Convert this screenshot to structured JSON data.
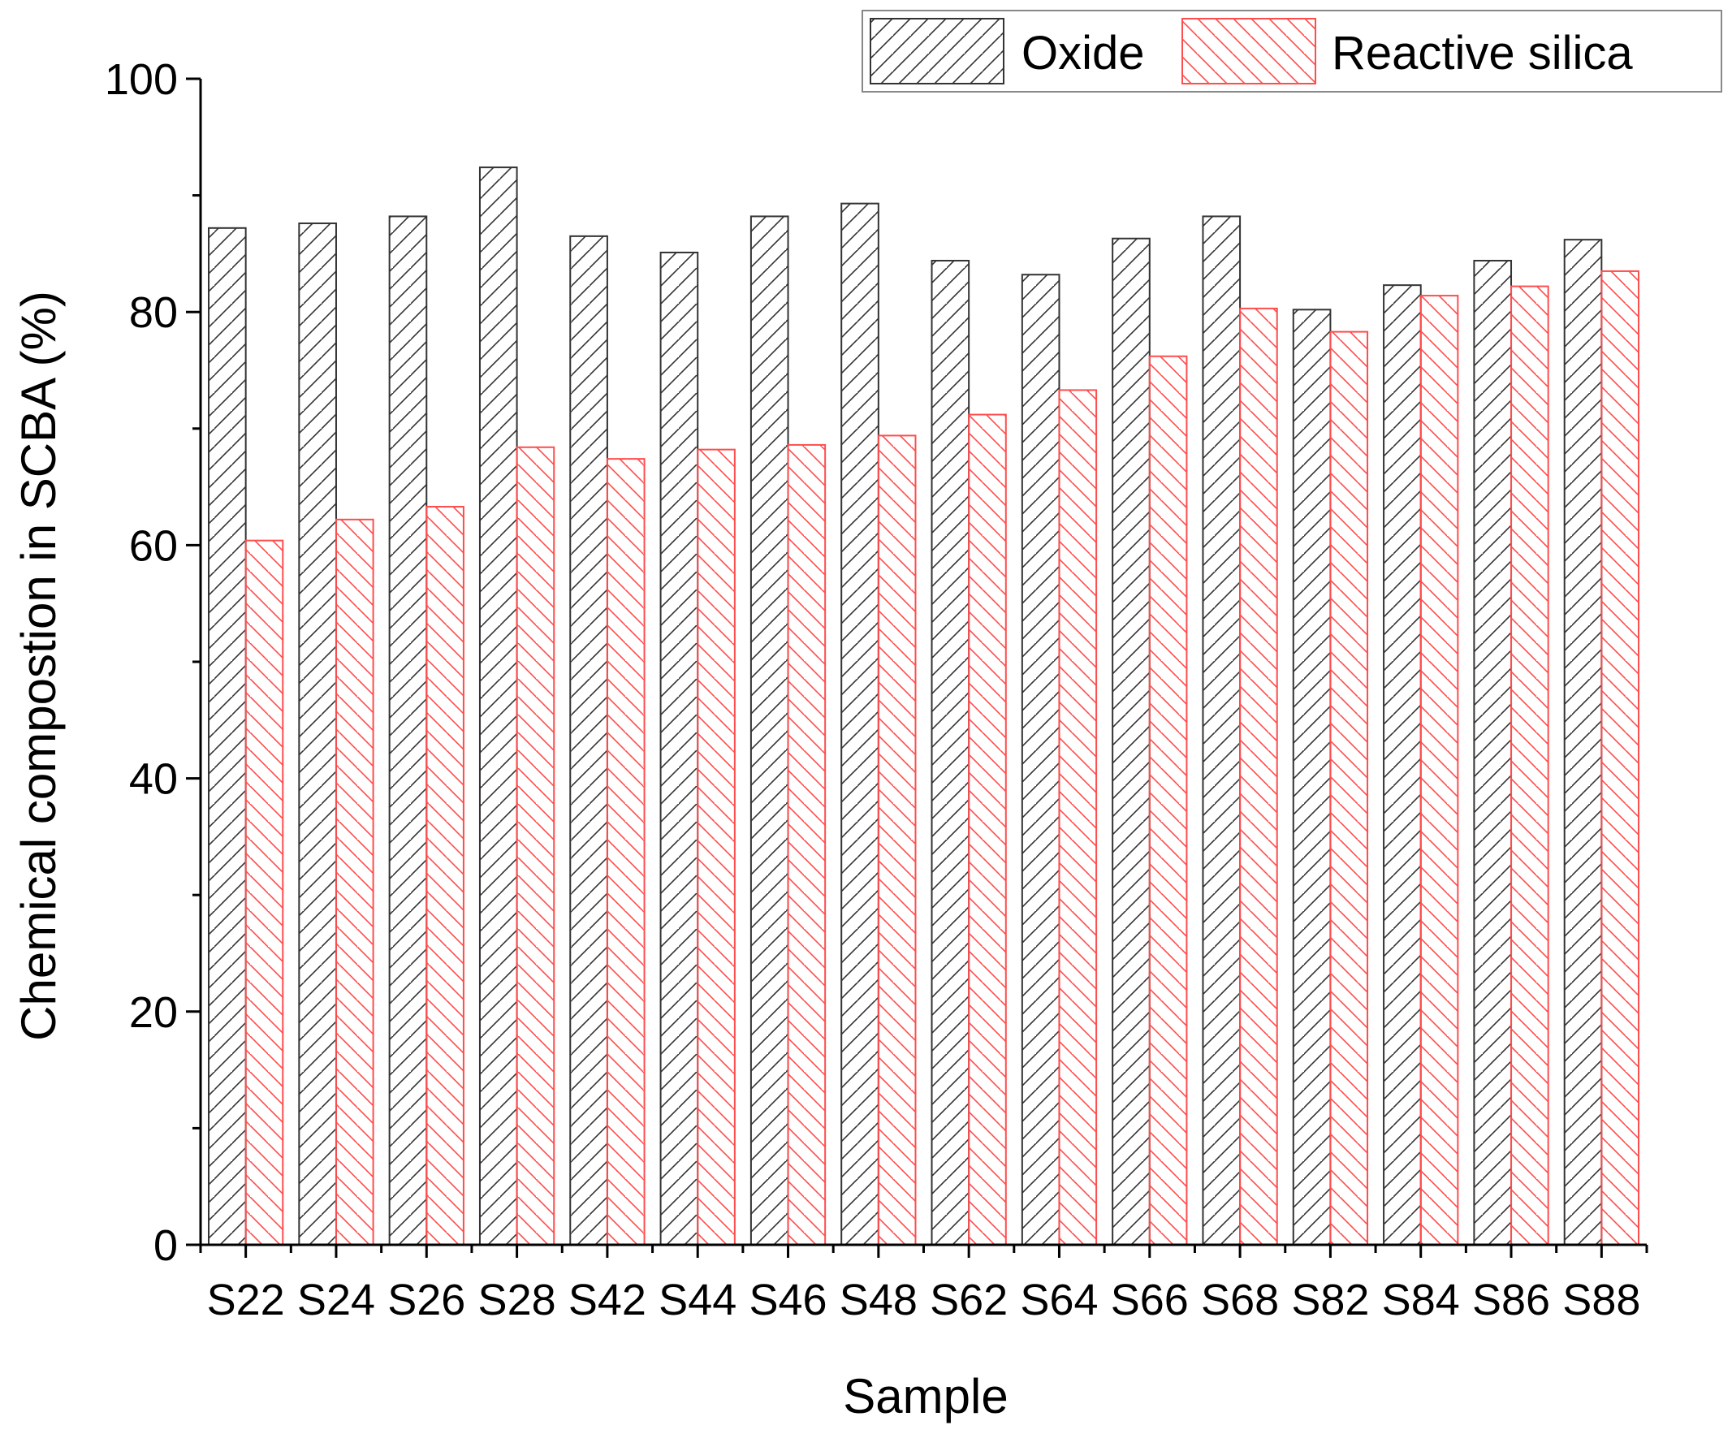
{
  "chart_data": {
    "type": "bar",
    "title": "",
    "xlabel": "Sample",
    "ylabel": "Chemical compostion in SCBA (%)",
    "ylim": [
      0,
      100
    ],
    "yticks": [
      0,
      20,
      40,
      60,
      80,
      100
    ],
    "grid": false,
    "legend_position": "top-right",
    "categories": [
      "S22",
      "S24",
      "S26",
      "S28",
      "S42",
      "S44",
      "S46",
      "S48",
      "S62",
      "S64",
      "S66",
      "S68",
      "S82",
      "S84",
      "S86",
      "S88"
    ],
    "series": [
      {
        "name": "Oxide",
        "color": "#333333",
        "pattern": "forward-hatch",
        "values": [
          87.2,
          87.6,
          88.2,
          92.4,
          86.5,
          85.1,
          88.2,
          89.3,
          84.4,
          83.2,
          86.3,
          88.2,
          80.2,
          82.3,
          84.4,
          86.2
        ]
      },
      {
        "name": "Reactive silica",
        "color": "#ff4d4d",
        "pattern": "back-hatch",
        "values": [
          60.4,
          62.2,
          63.3,
          68.4,
          67.4,
          68.2,
          68.6,
          69.4,
          71.2,
          73.3,
          76.2,
          80.3,
          78.3,
          81.4,
          82.2,
          83.5
        ]
      }
    ]
  }
}
